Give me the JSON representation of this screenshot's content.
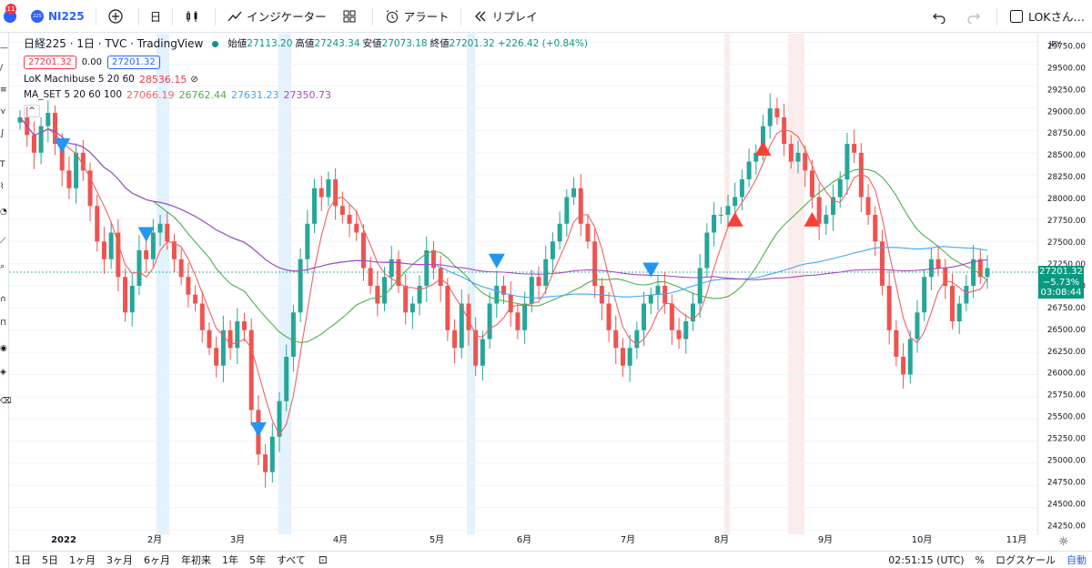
{
  "toolbar": {
    "notification_count": "11",
    "symbol_logo": "225",
    "symbol": "NI225",
    "interval": "日",
    "indicators_label": "インジケーター",
    "alert_label": "アラート",
    "replay_label": "リプレイ",
    "user_label": "LOKさん…"
  },
  "legend": {
    "title": "日経225 · 1日 · TVC · TradingView",
    "open_label": "始値",
    "open_value": "27113.20",
    "high_label": "高値",
    "high_value": "27243.34",
    "low_label": "安値",
    "low_value": "27073.18",
    "close_label": "終値",
    "close_value": "27201.32",
    "change": "+226.42 (+0.84%)",
    "bid": "27201.32",
    "spread": "0.00",
    "ask": "27201.32",
    "ind1_name": "LoK Machibuse 5 20 60",
    "ind1_value": "28536.15",
    "ind2_name": "MA_SET 5 20 60 100",
    "ind2_values": [
      "27066.19",
      "26762.44",
      "27631.23",
      "27350.73"
    ],
    "collapse_icon": "^"
  },
  "price_axis": {
    "currency": "JPY",
    "ticks": [
      "29750.00",
      "29500.00",
      "29250.00",
      "29000.00",
      "28750.00",
      "28500.00",
      "28250.00",
      "28000.00",
      "27750.00",
      "27500.00",
      "27250.00",
      "27000.00",
      "26750.00",
      "26500.00",
      "26250.00",
      "26000.00",
      "25750.00",
      "25500.00",
      "25250.00",
      "25000.00",
      "24750.00",
      "24500.00",
      "24250.00"
    ],
    "current_price": "27201.32",
    "current_change": "−5.73%",
    "countdown": "03:08:44"
  },
  "time_axis": {
    "labels": [
      "2022",
      "2月",
      "3月",
      "4月",
      "5月",
      "6月",
      "7月",
      "8月",
      "9月",
      "10月",
      "11月"
    ]
  },
  "bottom": {
    "ranges": [
      "1日",
      "5日",
      "1ヶ月",
      "3ヶ月",
      "6ヶ月",
      "年初来",
      "1年",
      "5年",
      "すべて"
    ],
    "clock": "02:51:15 (UTC)",
    "percent": "%",
    "log": "ログスケール",
    "auto": "自動"
  },
  "colors": {
    "up": "#26a69a",
    "down": "#ef5350",
    "ma5": "#f06262",
    "ma20": "#4caf50",
    "ma60": "#42a5f5",
    "ma100": "#ab47bc",
    "accent": "#2962ff"
  },
  "chart_data": {
    "type": "candlestick",
    "symbol": "日経225",
    "interval": "1日",
    "ylim": [
      24250,
      29750
    ],
    "x_labels": [
      "2022",
      "2月",
      "3月",
      "4月",
      "5月",
      "6月",
      "7月",
      "8月",
      "9月",
      "10月",
      "11月"
    ],
    "last": {
      "open": 27113.2,
      "high": 27243.34,
      "low": 27073.18,
      "close": 27201.32
    },
    "series": [
      {
        "name": "MA 5",
        "values": [
          27066.19
        ]
      },
      {
        "name": "MA 20",
        "values": [
          26762.44
        ]
      },
      {
        "name": "MA 60",
        "values": [
          27631.23
        ]
      },
      {
        "name": "MA 100",
        "values": [
          27350.73
        ]
      }
    ],
    "closes": [
      28900,
      28700,
      28500,
      28800,
      28950,
      28600,
      28300,
      28100,
      28500,
      28300,
      27900,
      27500,
      27300,
      27600,
      27100,
      26700,
      27000,
      27400,
      27300,
      27600,
      27700,
      27500,
      27300,
      27100,
      26900,
      26800,
      26500,
      26300,
      26100,
      26500,
      26300,
      26600,
      26500,
      25600,
      25100,
      24900,
      25300,
      25700,
      26200,
      26700,
      27300,
      27700,
      28100,
      28000,
      28200,
      27900,
      27800,
      27700,
      27600,
      27200,
      27000,
      26800,
      27100,
      27300,
      27000,
      26700,
      26800,
      27000,
      27400,
      27200,
      27000,
      26500,
      26300,
      26800,
      26500,
      26100,
      26400,
      26800,
      27000,
      26900,
      26700,
      26500,
      26800,
      27100,
      27000,
      27300,
      27500,
      27700,
      28000,
      28100,
      27700,
      27500,
      27000,
      26800,
      26500,
      26300,
      26100,
      26300,
      26500,
      26800,
      26900,
      27000,
      26800,
      26500,
      26400,
      26600,
      26800,
      27200,
      27600,
      27800,
      27800,
      27900,
      28000,
      28200,
      28400,
      28500,
      28800,
      29000,
      28900,
      28600,
      28400,
      28500,
      28300,
      28000,
      27700,
      27800,
      28000,
      28200,
      28600,
      28500,
      28000,
      27800,
      27500,
      27000,
      26500,
      26200,
      26000,
      26400,
      26700,
      27100,
      27300,
      27200,
      27000,
      26600,
      26800,
      27000,
      27300,
      27100,
      27200
    ],
    "signals": [
      {
        "type": "sell",
        "x_index": 6
      },
      {
        "type": "sell",
        "x_index": 18
      },
      {
        "type": "sell",
        "x_index": 34
      },
      {
        "type": "sell",
        "x_index": 68
      },
      {
        "type": "sell",
        "x_index": 90
      },
      {
        "type": "buy",
        "x_index": 102
      },
      {
        "type": "buy",
        "x_index": 106
      },
      {
        "type": "buy",
        "x_index": 113
      }
    ]
  }
}
